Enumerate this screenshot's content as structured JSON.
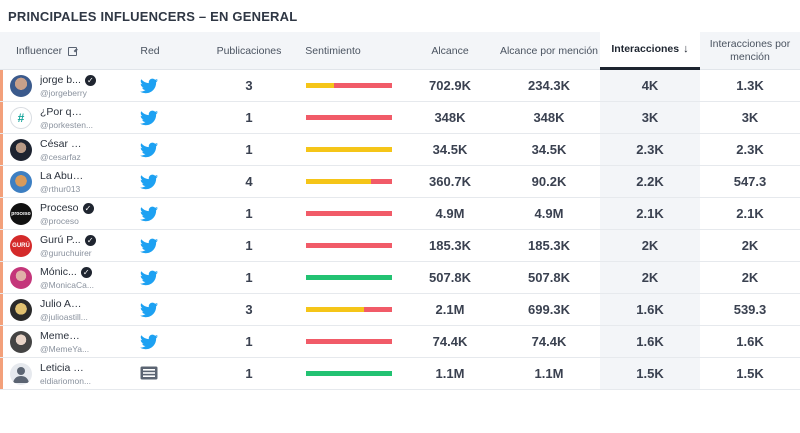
{
  "title": "PRINCIPALES INFLUENCERS – EN GENERAL",
  "colors": {
    "positive": "#22c272",
    "neutral": "#f5c518",
    "negative": "#f15b68",
    "twitter": "#1da1f2",
    "row_marker": "#f3a07a"
  },
  "columns": {
    "influencer": "Influencer",
    "network": "Red",
    "publications": "Publicaciones",
    "sentiment": "Sentimiento",
    "reach": "Alcance",
    "reach_per_mention": "Alcance por mención",
    "interactions": "Interacciones",
    "interactions_per_mention": "Interacciones por mención"
  },
  "rows": [
    {
      "name": "jorge b...",
      "handle": "@jorgeberry",
      "verified": true,
      "avatar": "avatar-photo",
      "network": "twitter-icon",
      "publications": "3",
      "sentiment": {
        "positive": 0,
        "neutral": 0.33,
        "negative": 0.67
      },
      "reach": "702.9K",
      "reach_per_mention": "234.3K",
      "interactions": "4K",
      "interactions_per_mention": "1.3K"
    },
    {
      "name": "¿Por qué ...",
      "handle": "@porkesten...",
      "verified": false,
      "avatar": "hashtag-logo",
      "network": "twitter-icon",
      "publications": "1",
      "sentiment": {
        "positive": 0,
        "neutral": 0,
        "negative": 1
      },
      "reach": "348K",
      "reach_per_mention": "348K",
      "interactions": "3K",
      "interactions_per_mention": "3K"
    },
    {
      "name": "César Faz",
      "handle": "@cesarfaz",
      "verified": false,
      "avatar": "avatar-photo",
      "network": "twitter-icon",
      "publications": "1",
      "sentiment": {
        "positive": 0,
        "neutral": 1,
        "negative": 0
      },
      "reach": "34.5K",
      "reach_per_mention": "34.5K",
      "interactions": "2.3K",
      "interactions_per_mention": "2.3K"
    },
    {
      "name": "La Abuela...",
      "handle": "@rthur013",
      "verified": false,
      "avatar": "avatar-photo",
      "network": "twitter-icon",
      "publications": "4",
      "sentiment": {
        "positive": 0,
        "neutral": 0.75,
        "negative": 0.25
      },
      "reach": "360.7K",
      "reach_per_mention": "90.2K",
      "interactions": "2.2K",
      "interactions_per_mention": "547.3"
    },
    {
      "name": "Proceso",
      "handle": "@proceso",
      "verified": true,
      "avatar": "proceso-logo",
      "network": "twitter-icon",
      "publications": "1",
      "sentiment": {
        "positive": 0,
        "neutral": 0,
        "negative": 1
      },
      "reach": "4.9M",
      "reach_per_mention": "4.9M",
      "interactions": "2.1K",
      "interactions_per_mention": "2.1K"
    },
    {
      "name": "Gurú P...",
      "handle": "@guruchuirer",
      "verified": true,
      "avatar": "guru-logo",
      "network": "twitter-icon",
      "publications": "1",
      "sentiment": {
        "positive": 0,
        "neutral": 0,
        "negative": 1
      },
      "reach": "185.3K",
      "reach_per_mention": "185.3K",
      "interactions": "2K",
      "interactions_per_mention": "2K"
    },
    {
      "name": "Mónic...",
      "handle": "@MonicaCa...",
      "verified": true,
      "avatar": "avatar-photo",
      "network": "twitter-icon",
      "publications": "1",
      "sentiment": {
        "positive": 1,
        "neutral": 0,
        "negative": 0
      },
      "reach": "507.8K",
      "reach_per_mention": "507.8K",
      "interactions": "2K",
      "interactions_per_mention": "2K"
    },
    {
      "name": "Julio Astil...",
      "handle": "@julioastill...",
      "verified": false,
      "avatar": "avatar-photo",
      "network": "twitter-icon",
      "publications": "3",
      "sentiment": {
        "positive": 0,
        "neutral": 0.67,
        "negative": 0.33
      },
      "reach": "2.1M",
      "reach_per_mention": "699.3K",
      "interactions": "1.6K",
      "interactions_per_mention": "539.3"
    },
    {
      "name": "MemeYa...",
      "handle": "@MemeYa...",
      "verified": false,
      "avatar": "avatar-photo",
      "network": "twitter-icon",
      "publications": "1",
      "sentiment": {
        "positive": 0,
        "neutral": 0,
        "negative": 1
      },
      "reach": "74.4K",
      "reach_per_mention": "74.4K",
      "interactions": "1.6K",
      "interactions_per_mention": "1.6K"
    },
    {
      "name": "Leticia M...",
      "handle": "eldiariomon...",
      "verified": false,
      "avatar": "avatar-placeholder",
      "network": "news-icon",
      "publications": "1",
      "sentiment": {
        "positive": 1,
        "neutral": 0,
        "negative": 0
      },
      "reach": "1.1M",
      "reach_per_mention": "1.1M",
      "interactions": "1.5K",
      "interactions_per_mention": "1.5K"
    }
  ]
}
